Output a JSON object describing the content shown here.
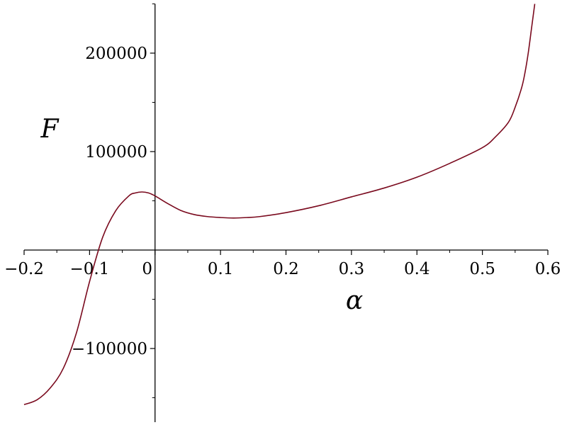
{
  "chart_data": {
    "type": "line",
    "xlabel": "α",
    "ylabel": "F",
    "xlim": [
      -0.2,
      0.6
    ],
    "ylim": [
      -175000,
      250000
    ],
    "grid": false,
    "x_ticks": [
      -0.2,
      -0.1,
      0,
      0.1,
      0.2,
      0.3,
      0.4,
      0.5,
      0.6
    ],
    "x_tick_labels": [
      "−0.2",
      "−0.1",
      "0",
      "0.1",
      "0.2",
      "0.3",
      "0.4",
      "0.5",
      "0.6"
    ],
    "y_ticks": [
      -100000,
      100000,
      200000
    ],
    "y_tick_labels": [
      "−100000",
      "100000",
      "200000"
    ],
    "series": [
      {
        "color": "#7a0a1e",
        "x": [
          -0.2,
          -0.18,
          -0.16,
          -0.14,
          -0.12,
          -0.1,
          -0.08,
          -0.06,
          -0.04,
          -0.03,
          -0.02,
          -0.01,
          0.0,
          0.02,
          0.04,
          0.06,
          0.08,
          0.1,
          0.12,
          0.14,
          0.16,
          0.2,
          0.25,
          0.3,
          0.35,
          0.4,
          0.45,
          0.5,
          0.52,
          0.54,
          0.55,
          0.56,
          0.565,
          0.57,
          0.575,
          0.58
        ],
        "y": [
          -157000,
          -152000,
          -140000,
          -120000,
          -84000,
          -32000,
          13000,
          40000,
          55000,
          58000,
          59000,
          58000,
          55000,
          47000,
          40000,
          36000,
          34000,
          33000,
          32500,
          33000,
          34000,
          38000,
          45000,
          54000,
          63000,
          74000,
          88000,
          104000,
          115000,
          130000,
          145000,
          165000,
          180000,
          200000,
          225000,
          250000
        ]
      }
    ]
  }
}
